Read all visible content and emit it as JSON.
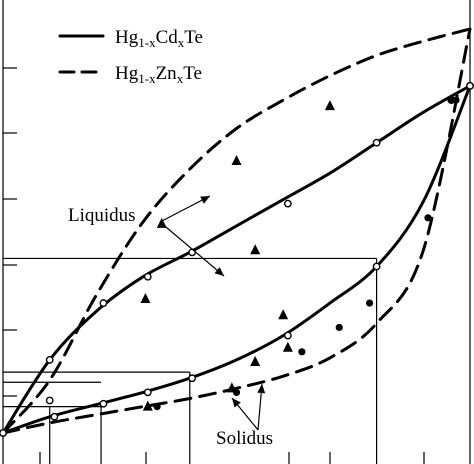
{
  "chart_data": {
    "type": "line",
    "title": "",
    "xlabel": "",
    "ylabel": "",
    "xlim": [
      0,
      1
    ],
    "ylim": [
      0,
      1
    ],
    "grid": false,
    "legend": {
      "placement": "top-left",
      "entries": [
        {
          "series": "Hg1-xCdxTe",
          "base": "Hg",
          "sub1": "1-x",
          "mid": "Cd",
          "sub2": "x",
          "tail": "Te",
          "style": "solid"
        },
        {
          "series": "Hg1-xZnxTe",
          "base": "Hg",
          "sub1": "1-x",
          "mid": "Zn",
          "sub2": "x",
          "tail": "Te",
          "style": "dashed"
        }
      ]
    },
    "series": [
      {
        "name": "Hg1-xCdxTe",
        "curve": "liquidus",
        "style": "solid",
        "x": [
          0.0,
          0.1,
          0.2,
          0.3,
          0.4,
          0.5,
          0.6,
          0.7,
          0.8,
          0.9,
          1.0
        ],
        "y": [
          0.0,
          0.18,
          0.3,
          0.385,
          0.445,
          0.51,
          0.575,
          0.64,
          0.715,
          0.79,
          0.855
        ]
      },
      {
        "name": "Hg1-xCdxTe",
        "curve": "solidus",
        "style": "solid",
        "x": [
          0.0,
          0.1,
          0.2,
          0.3,
          0.4,
          0.5,
          0.6,
          0.7,
          0.8,
          0.9,
          1.0
        ],
        "y": [
          0.0,
          0.04,
          0.07,
          0.1,
          0.135,
          0.18,
          0.24,
          0.32,
          0.41,
          0.57,
          0.855
        ]
      },
      {
        "name": "Hg1-xZnxTe",
        "curve": "liquidus",
        "style": "dashed",
        "x": [
          0.0,
          0.1,
          0.2,
          0.3,
          0.4,
          0.5,
          0.6,
          0.7,
          0.8,
          0.9,
          1.0
        ],
        "y": [
          0.0,
          0.13,
          0.34,
          0.52,
          0.65,
          0.75,
          0.82,
          0.88,
          0.93,
          0.965,
          0.995
        ]
      },
      {
        "name": "Hg1-xZnxTe",
        "curve": "solidus",
        "style": "dashed",
        "x": [
          0.0,
          0.1,
          0.2,
          0.3,
          0.4,
          0.5,
          0.6,
          0.7,
          0.8,
          0.9,
          1.0
        ],
        "y": [
          0.0,
          0.025,
          0.045,
          0.065,
          0.085,
          0.11,
          0.14,
          0.185,
          0.27,
          0.45,
          0.995
        ]
      }
    ],
    "markers": [
      {
        "kind": "open-circle",
        "x": [
          0.0,
          0.1,
          0.215,
          0.31,
          0.405,
          0.61,
          0.8,
          0.96,
          1.0
        ],
        "y": [
          0.0,
          0.18,
          0.32,
          0.385,
          0.445,
          0.565,
          0.715,
          0.82,
          0.855
        ]
      },
      {
        "kind": "open-circle",
        "x": [
          0.0,
          0.11,
          0.215,
          0.31,
          0.405,
          0.61,
          0.8,
          1.0
        ],
        "y": [
          0.0,
          0.04,
          0.072,
          0.1,
          0.135,
          0.24,
          0.41,
          0.855
        ]
      },
      {
        "kind": "open-circle",
        "x": [
          0.1
        ],
        "y": [
          0.08
        ]
      },
      {
        "kind": "triangle",
        "x": [
          0.305,
          0.34,
          0.5,
          0.54,
          0.6,
          0.7
        ],
        "y": [
          0.33,
          0.515,
          0.67,
          0.45,
          0.29,
          0.805
        ]
      },
      {
        "kind": "triangle",
        "x": [
          0.31,
          0.49,
          0.54,
          0.61
        ],
        "y": [
          0.065,
          0.11,
          0.175,
          0.21
        ]
      },
      {
        "kind": "dot",
        "x": [
          0.33,
          0.5,
          0.64,
          0.72,
          0.785,
          0.91,
          0.96,
          0.97
        ],
        "y": [
          0.065,
          0.1,
          0.2,
          0.26,
          0.32,
          0.53,
          0.82,
          0.82
        ]
      }
    ],
    "reference_lines": {
      "horizontal_y": [
        0.43,
        0.15,
        0.125,
        0.065
      ],
      "vertical_x": [
        0.21,
        0.4,
        0.8
      ]
    },
    "annotations": [
      {
        "text": "Liquidus"
      },
      {
        "text": "Solidus"
      }
    ]
  }
}
